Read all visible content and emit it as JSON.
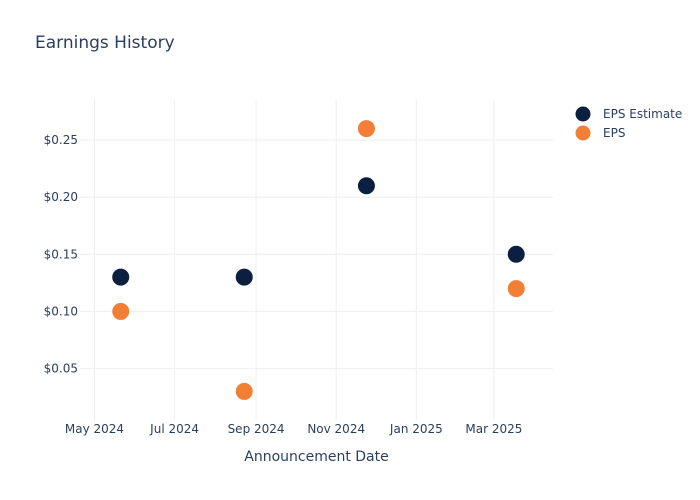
{
  "chart_data": {
    "type": "scatter",
    "title": "Earnings History",
    "xlabel": "Announcement Date",
    "ylabel": "",
    "x_axis": {
      "type": "date",
      "range": [
        "2024-04-20",
        "2025-04-15"
      ],
      "ticks": [
        {
          "date": "2024-05-01",
          "label": "May 2024"
        },
        {
          "date": "2024-07-01",
          "label": "Jul 2024"
        },
        {
          "date": "2024-09-01",
          "label": "Sep 2024"
        },
        {
          "date": "2024-11-01",
          "label": "Nov 2024"
        },
        {
          "date": "2025-01-01",
          "label": "Jan 2025"
        },
        {
          "date": "2025-03-01",
          "label": "Mar 2025"
        }
      ]
    },
    "y_axis": {
      "range": [
        0.005,
        0.285
      ],
      "ticks": [
        {
          "value": 0.05,
          "label": "$0.05"
        },
        {
          "value": 0.1,
          "label": "$0.10"
        },
        {
          "value": 0.15,
          "label": "$0.15"
        },
        {
          "value": 0.2,
          "label": "$0.20"
        },
        {
          "value": 0.25,
          "label": "$0.25"
        }
      ]
    },
    "grid": true,
    "legend_position": "top-right",
    "series": [
      {
        "name": "EPS Estimate",
        "color": "#0b1f41",
        "points": [
          {
            "x": "2024-05-21",
            "y": 0.13
          },
          {
            "x": "2024-08-23",
            "y": 0.13
          },
          {
            "x": "2024-11-24",
            "y": 0.21
          },
          {
            "x": "2025-03-18",
            "y": 0.15
          }
        ]
      },
      {
        "name": "EPS",
        "color": "#f37f37",
        "points": [
          {
            "x": "2024-05-21",
            "y": 0.1
          },
          {
            "x": "2024-08-23",
            "y": 0.03
          },
          {
            "x": "2024-11-24",
            "y": 0.26
          },
          {
            "x": "2025-03-18",
            "y": 0.12
          }
        ]
      }
    ]
  }
}
